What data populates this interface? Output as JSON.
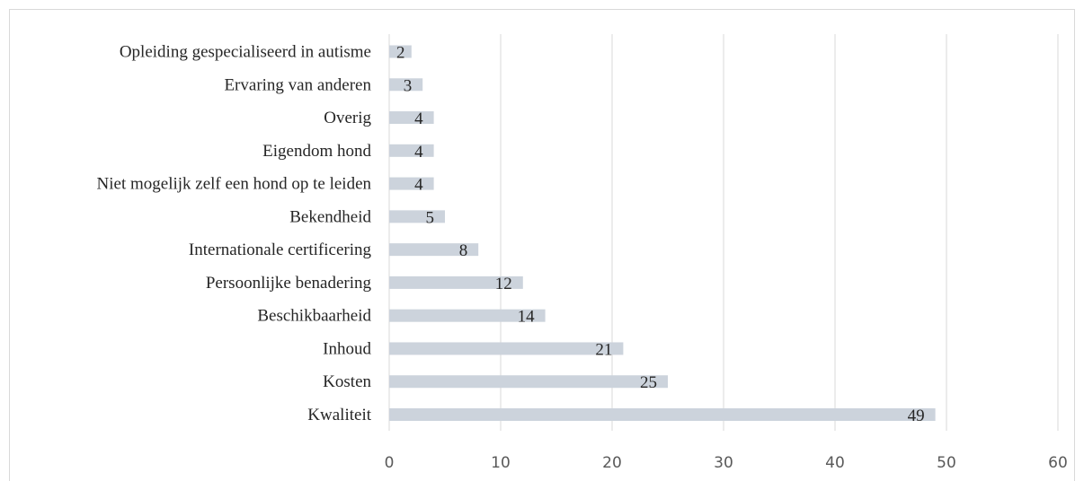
{
  "chart_data": {
    "type": "bar",
    "orientation": "horizontal",
    "title": "",
    "xlabel": "",
    "ylabel": "",
    "categories": [
      "Opleiding gespecialiseerd in autisme",
      "Ervaring van anderen",
      "Overig",
      "Eigendom hond",
      "Niet mogelijk zelf een hond op te leiden",
      "Bekendheid",
      "Internationale certificering",
      "Persoonlijke benadering",
      "Beschikbaarheid",
      "Inhoud",
      "Kosten",
      "Kwaliteit"
    ],
    "values": [
      2,
      3,
      4,
      4,
      4,
      5,
      8,
      12,
      14,
      21,
      25,
      49
    ],
    "xlim": [
      0,
      60
    ],
    "xticks": [
      0,
      10,
      20,
      30,
      40,
      50,
      60
    ],
    "grid": "vertical",
    "legend": "none",
    "bar_color": "#ccd3dc"
  }
}
